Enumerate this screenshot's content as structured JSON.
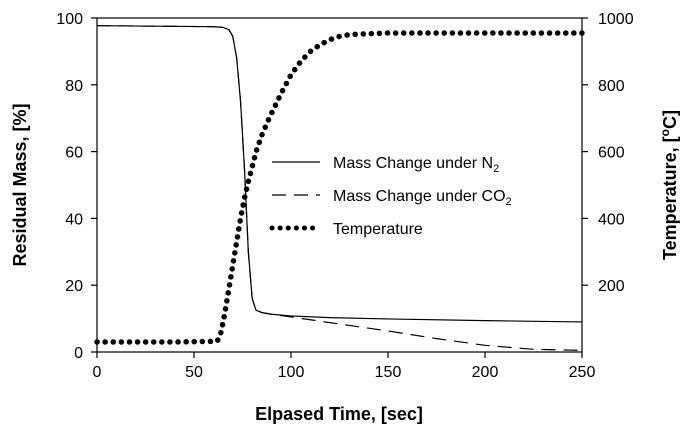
{
  "chart_data": {
    "type": "line",
    "title": "",
    "xlabel": "Elpased Time, [sec]",
    "ylabel_left": "Residual Mass, [%]",
    "ylabel_right": {
      "text": "Temperature, [",
      "sup": "o",
      "tail": "C]"
    },
    "xlim": [
      0,
      250
    ],
    "ylim_left": [
      0,
      100
    ],
    "ylim_right": [
      0,
      1000
    ],
    "x_ticks": [
      "0",
      "50",
      "100",
      "150",
      "200",
      "250"
    ],
    "y_left_ticks": [
      "0",
      "20",
      "40",
      "60",
      "80",
      "100"
    ],
    "y_right_ticks": [
      "200",
      "400",
      "600",
      "800",
      "1000"
    ],
    "grid": false,
    "legend_placement": "center-right",
    "series": [
      {
        "name": {
          "text": "Mass Change under N",
          "sub": "2"
        },
        "axis": "left",
        "style": "solid",
        "color": "#000000",
        "x": [
          0,
          60,
          65,
          68,
          70,
          72,
          74,
          76,
          78,
          80,
          82,
          85,
          90,
          100,
          120,
          150,
          200,
          250
        ],
        "y": [
          97.7,
          97.4,
          97.2,
          96.5,
          94.5,
          88,
          75,
          55,
          30,
          16,
          12.5,
          11.8,
          11.3,
          10.8,
          10.3,
          9.9,
          9.4,
          9.0
        ]
      },
      {
        "name": {
          "text": "Mass Change under CO",
          "sub": "2"
        },
        "axis": "left",
        "style": "dashed",
        "color": "#000000",
        "x": [
          0,
          60,
          65,
          68,
          70,
          72,
          74,
          76,
          78,
          80,
          82,
          85,
          90,
          100,
          120,
          150,
          175,
          200,
          225,
          250
        ],
        "y": [
          97.7,
          97.4,
          97.2,
          96.5,
          94.5,
          88,
          75,
          55,
          30,
          16,
          12.5,
          11.8,
          11.3,
          10.5,
          8.8,
          6.3,
          4.0,
          2.0,
          0.8,
          0.5
        ]
      },
      {
        "name": {
          "text": "Temperature",
          "sub": ""
        },
        "axis": "right",
        "style": "dotted",
        "color": "#000000",
        "x": [
          0,
          40,
          62,
          64,
          66,
          68,
          70,
          72,
          74,
          76,
          78,
          80,
          82,
          85,
          88,
          90,
          95,
          100,
          105,
          110,
          115,
          120,
          125,
          130,
          140,
          150,
          175,
          200,
          225,
          250
        ],
        "y": [
          30,
          30,
          32,
          60,
          120,
          190,
          260,
          330,
          400,
          460,
          510,
          555,
          600,
          650,
          690,
          715,
          775,
          830,
          870,
          900,
          920,
          935,
          945,
          950,
          953,
          955,
          955,
          955,
          955,
          955
        ]
      }
    ]
  }
}
